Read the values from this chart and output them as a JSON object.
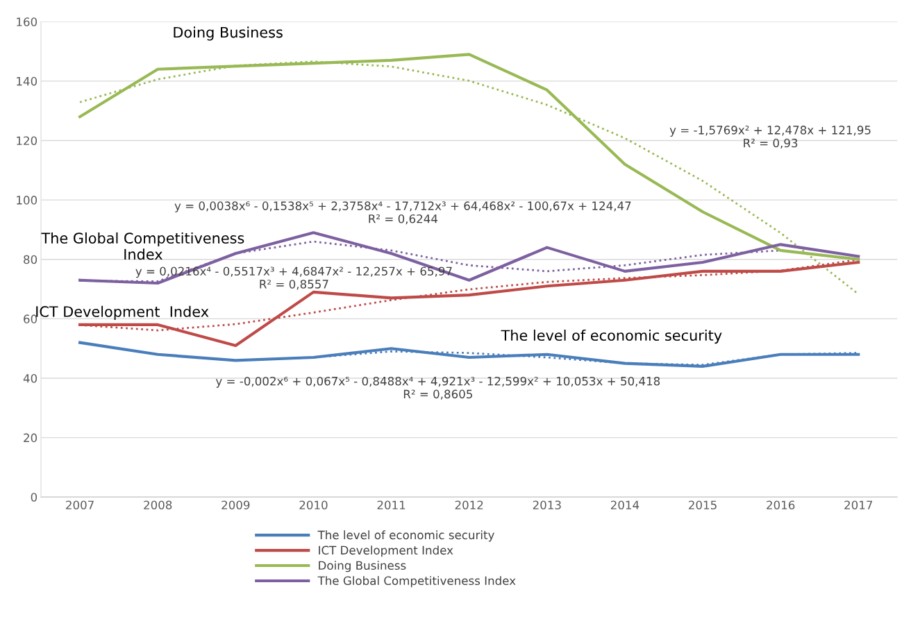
{
  "chart_data": {
    "type": "line",
    "categories": [
      "2007",
      "2008",
      "2009",
      "2010",
      "2011",
      "2012",
      "2013",
      "2014",
      "2015",
      "2016",
      "2017"
    ],
    "ylim": [
      0,
      160
    ],
    "yticks": [
      0,
      20,
      40,
      60,
      80,
      100,
      120,
      140,
      160
    ],
    "grid": "y",
    "legend": "bottom",
    "marker": "none",
    "series": [
      {
        "name": "The level of economic security",
        "color": "#4a7ebb",
        "values": [
          52,
          48,
          46,
          47,
          50,
          47,
          48,
          45,
          44,
          48,
          48
        ]
      },
      {
        "name": "ICT Development Index",
        "color": "#be4b48",
        "values": [
          58,
          58,
          51,
          69,
          67,
          68,
          71,
          73,
          76,
          76,
          79
        ]
      },
      {
        "name": "Doing Business",
        "color": "#98b954",
        "values": [
          128,
          144,
          145,
          146,
          147,
          149,
          137,
          112,
          96,
          83,
          80
        ]
      },
      {
        "name": "The Global Competitiveness Index",
        "color": "#7d60a0",
        "values": [
          73,
          72,
          82,
          89,
          82,
          73,
          84,
          76,
          79,
          85,
          81
        ]
      },
      {
        "type": "line",
        "line_style": "dotted",
        "color": "#4a7ebb",
        "values": [
          52,
          48,
          46,
          47,
          49,
          48.5,
          47,
          45,
          44.5,
          48,
          48.5
        ]
      },
      {
        "type": "line",
        "line_style": "dotted",
        "color": "#be4b48",
        "values": [
          57.9,
          56.1,
          58.2,
          62.1,
          66.3,
          69.9,
          72.4,
          73.7,
          74.7,
          76.2,
          79.9
        ]
      },
      {
        "type": "line",
        "line_style": "dotted",
        "color": "#98b954",
        "values": [
          132.9,
          140.6,
          145.2,
          146.6,
          144.9,
          140.1,
          132,
          120.8,
          106.4,
          88.9,
          68.3
        ]
      },
      {
        "type": "line",
        "line_style": "dotted",
        "color": "#7d60a0",
        "values": [
          72.8,
          72.6,
          82,
          86,
          83,
          78,
          76,
          78,
          81.5,
          83,
          80
        ]
      }
    ],
    "annotations": [
      "Doing Business",
      "y = -1,5769x² + 12,478x + 121,95\nR² = 0,93",
      "y = 0,0038x⁶ - 0,1538x⁵ + 2,3758x⁴ - 17,712x³ + 64,468x² - 100,67x + 124,47\nR² = 0,6244",
      "The Global Competitiveness\nIndex",
      "y = 0,0216x⁴ - 0,5517x³ + 4,6847x² - 12,257x + 65,97\nR² = 0,8557",
      "ICT Development  Index",
      "The level of economic security",
      "y = -0,002x⁶ + 0,067x⁵ - 0,8488x⁴ + 4,921x³ - 12,599x² + 10,053x + 50,418\nR² = 0,8605"
    ]
  }
}
